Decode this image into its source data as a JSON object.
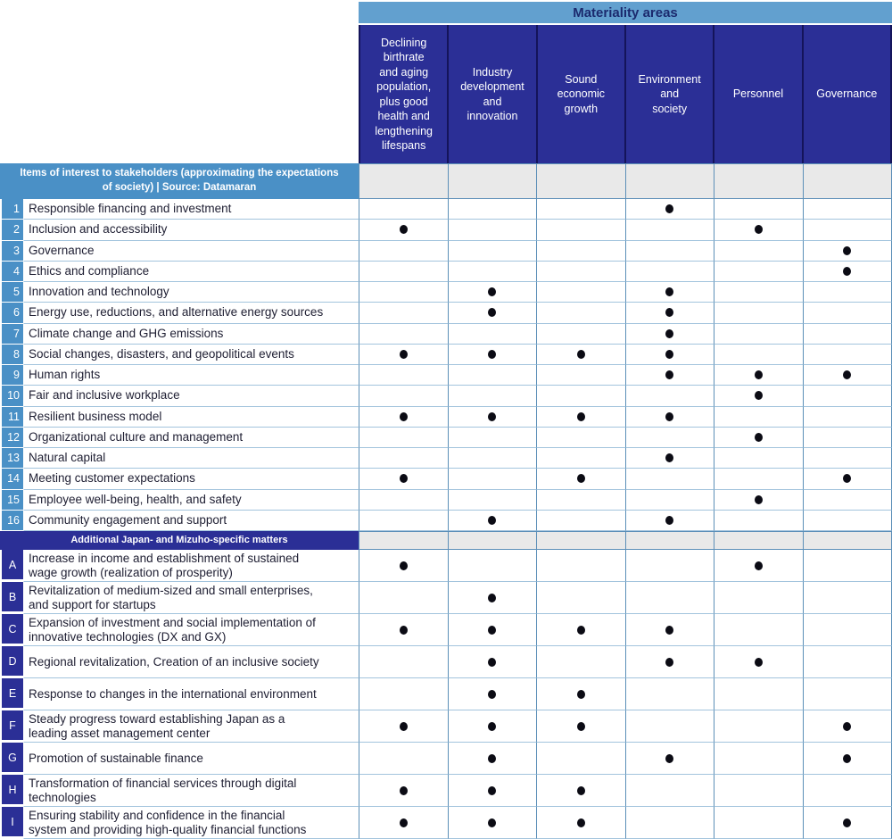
{
  "header": {
    "title": "Materiality areas",
    "columns": [
      "Declining\nbirthrate\nand aging\npopulation,\nplus good\nhealth and\nlengthening\nlifespans",
      "Industry\ndevelopment\nand\ninnovation",
      "Sound\neconomic\ngrowth",
      "Environment\nand\nsociety",
      "Personnel",
      "Governance"
    ]
  },
  "sections": [
    {
      "title": "Items of interest to stakeholders (approximating the expectations\nof society) | Source: Datamaran",
      "header_style": "blue",
      "rows": [
        {
          "id": "1",
          "label": "Responsible financing and investment",
          "dots": [
            4
          ]
        },
        {
          "id": "2",
          "label": "Inclusion and accessibility",
          "dots": [
            1,
            5
          ]
        },
        {
          "id": "3",
          "label": "Governance",
          "dots": [
            6
          ]
        },
        {
          "id": "4",
          "label": "Ethics and compliance",
          "dots": [
            6
          ]
        },
        {
          "id": "5",
          "label": "Innovation and technology",
          "dots": [
            2,
            4
          ]
        },
        {
          "id": "6",
          "label": "Energy use, reductions, and alternative energy sources",
          "dots": [
            2,
            4
          ]
        },
        {
          "id": "7",
          "label": "Climate change and GHG emissions",
          "dots": [
            4
          ]
        },
        {
          "id": "8",
          "label": "Social changes, disasters, and geopolitical events",
          "dots": [
            1,
            2,
            3,
            4
          ]
        },
        {
          "id": "9",
          "label": "Human rights",
          "dots": [
            4,
            5,
            6
          ]
        },
        {
          "id": "10",
          "label": "Fair and inclusive workplace",
          "dots": [
            5
          ]
        },
        {
          "id": "11",
          "label": "Resilient business model",
          "dots": [
            1,
            2,
            3,
            4
          ]
        },
        {
          "id": "12",
          "label": "Organizational culture and management",
          "dots": [
            5
          ]
        },
        {
          "id": "13",
          "label": "Natural capital",
          "dots": [
            4
          ]
        },
        {
          "id": "14",
          "label": "Meeting customer expectations",
          "dots": [
            1,
            3,
            6
          ]
        },
        {
          "id": "15",
          "label": "Employee well-being, health, and safety",
          "dots": [
            5
          ]
        },
        {
          "id": "16",
          "label": "Community engagement and support",
          "dots": [
            2,
            4
          ]
        }
      ]
    },
    {
      "title": "Additional Japan- and Mizuho-specific matters",
      "header_style": "navy",
      "rows": [
        {
          "id": "A",
          "label": "Increase in income and establishment of sustained\nwage growth (realization of prosperity)",
          "dots": [
            1,
            5
          ]
        },
        {
          "id": "B",
          "label": "Revitalization of medium-sized and small enterprises,\nand support for startups",
          "dots": [
            2
          ]
        },
        {
          "id": "C",
          "label": "Expansion of investment and social implementation of\ninnovative technologies (DX and GX)",
          "dots": [
            1,
            2,
            3,
            4
          ]
        },
        {
          "id": "D",
          "label": "Regional revitalization, Creation of an inclusive society",
          "dots": [
            2,
            4,
            5
          ]
        },
        {
          "id": "E",
          "label": "Response to changes in the international environment",
          "dots": [
            2,
            3
          ]
        },
        {
          "id": "F",
          "label": "Steady progress toward establishing Japan as a\nleading asset management center",
          "dots": [
            1,
            2,
            3,
            6
          ]
        },
        {
          "id": "G",
          "label": "Promotion of sustainable finance",
          "dots": [
            2,
            4,
            6
          ]
        },
        {
          "id": "H",
          "label": "Transformation of financial services through digital\ntechnologies",
          "dots": [
            1,
            2,
            3
          ]
        },
        {
          "id": "I",
          "label": "Ensuring stability and confidence in the financial\nsystem and providing high-quality financial functions",
          "dots": [
            1,
            2,
            3,
            6
          ]
        }
      ]
    }
  ],
  "colors": {
    "navy": "#2b2f96",
    "navydark": "#14145a",
    "lightbar": "#62a0cf",
    "bluebar": "#4a90c6",
    "graycell": "#e9e9e9",
    "gridh": "#a3c4dd",
    "gridv": "#5c8fb8",
    "dot": "#0b0b14",
    "headtext": "#1b2a6e",
    "labeltext": "#1e1e32"
  }
}
